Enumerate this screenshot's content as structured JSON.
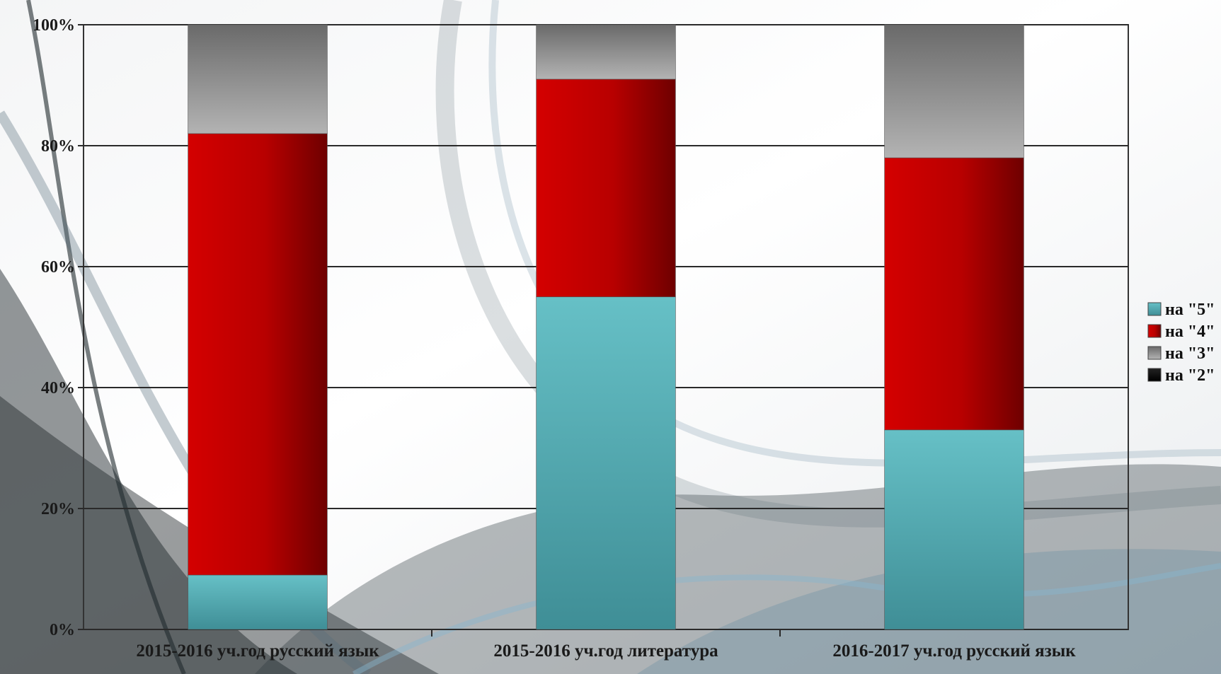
{
  "chart_data": {
    "type": "bar",
    "stacked": "percent",
    "categories": [
      "2015-2016 уч.год русский язык",
      "2015-2016 уч.год литература",
      "2016-2017 уч.год русский язык"
    ],
    "series": [
      {
        "name": "на \"5\"",
        "values": [
          9,
          55,
          33
        ],
        "color": "#5fb6bc"
      },
      {
        "name": "на \"4\"",
        "values": [
          73,
          36,
          45
        ],
        "color": "#c00000"
      },
      {
        "name": "на \"3\"",
        "values": [
          18,
          9,
          22
        ],
        "color": "#999999"
      },
      {
        "name": "на \"2\"",
        "values": [
          0,
          0,
          0
        ],
        "color": "#000000"
      }
    ],
    "ylim": [
      0,
      100
    ],
    "yticks": [
      "0%",
      "20%",
      "40%",
      "60%",
      "80%",
      "100%"
    ],
    "grid": true,
    "legend_position": "right"
  }
}
